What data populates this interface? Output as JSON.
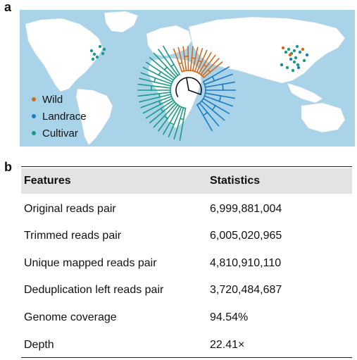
{
  "panels": {
    "a": "a",
    "b": "b"
  },
  "legend": [
    {
      "label": "Wild",
      "color": "#d26a1e"
    },
    {
      "label": "Landrace",
      "color": "#1f7bc0"
    },
    {
      "label": "Cultivar",
      "color": "#1d9b86"
    }
  ],
  "colors": {
    "ocean": "#a8d3e8",
    "land": "#ffffff",
    "rule": "#222222",
    "header_bg": "#e3e3e3"
  },
  "table": {
    "headers": [
      "Features",
      "Statistics"
    ],
    "rows": [
      [
        "Original reads pair",
        "6,999,881,004"
      ],
      [
        "Trimmed reads pair",
        "6,005,020,965"
      ],
      [
        "Unique mapped reads pair",
        "4,810,910,110"
      ],
      [
        "Deduplication left reads pair",
        "3,720,484,687"
      ],
      [
        "Genome coverage",
        "94.54%"
      ],
      [
        "Depth",
        "22.41×"
      ]
    ]
  }
}
